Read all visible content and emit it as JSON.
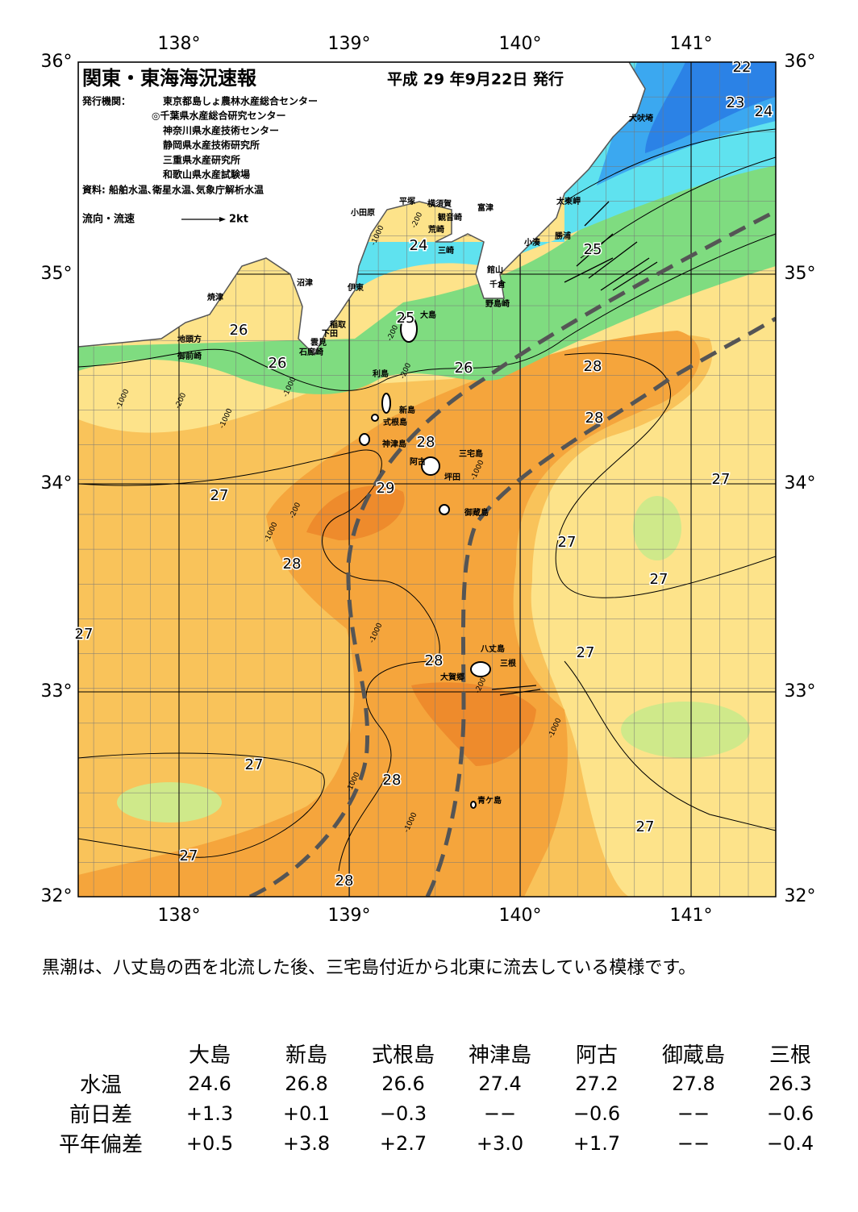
{
  "header": {
    "title": "関東・東海海況速報",
    "date": "平成 29 年9月22日 発行",
    "issuer_label": "発行機関：",
    "issuers": [
      "東京都島しょ農林水産総合センター",
      "◎千葉県水産総合研究センター",
      "神奈川県水産技術センター",
      "静岡県水産技術研究所",
      "三重県水産研究所",
      "和歌山県水産試験場"
    ],
    "source": "資料: 船舶水温､衛星水温､気象庁解析水温"
  },
  "legend": {
    "label": "流向・流速",
    "scale": "2kt"
  },
  "map": {
    "lon_labels": [
      "138°",
      "139°",
      "140°",
      "141°"
    ],
    "lat_labels": [
      "36°",
      "35°",
      "34°",
      "33°",
      "32°"
    ],
    "places": [
      "犬吠埼",
      "太東岬",
      "勝浦",
      "小湊",
      "富津",
      "横須賀",
      "平塚",
      "小田原",
      "観音崎",
      "荒崎",
      "三崎",
      "館山",
      "千倉",
      "野島崎",
      "沼津",
      "伊東",
      "焼津",
      "稲取",
      "下田",
      "雲見",
      "石廊崎",
      "地頭方",
      "御前崎",
      "大島",
      "利島",
      "新島",
      "式根島",
      "神津島",
      "三宅島",
      "阿古",
      "坪田",
      "御蔵島",
      "八丈島",
      "三根",
      "大賀郷",
      "青ケ島"
    ],
    "isotherm_labels": [
      "22",
      "23",
      "24",
      "24",
      "25",
      "25",
      "26",
      "26",
      "26",
      "28",
      "28",
      "28",
      "29",
      "27",
      "27",
      "28",
      "27",
      "27",
      "27",
      "27",
      "28",
      "27",
      "28",
      "27",
      "27",
      "28"
    ],
    "depth_labels": [
      "-1000",
      "-200",
      "-200",
      "-200",
      "-1000",
      "-1000",
      "-200",
      "-1000",
      "-1000",
      "-200",
      "-1000",
      "-1000",
      "-200",
      "-1000",
      "-1000",
      "-1000"
    ]
  },
  "description": "黒潮は、八丈島の西を北流した後、三宅島付近から北東に流去している模様です。",
  "table": {
    "columns": [
      "大島",
      "新島",
      "式根島",
      "神津島",
      "阿古",
      "御蔵島",
      "三根"
    ],
    "rows": [
      {
        "label": "水温",
        "values": [
          "24.6",
          "26.8",
          "26.6",
          "27.4",
          "27.2",
          "27.8",
          "26.3"
        ]
      },
      {
        "label": "前日差",
        "values": [
          "+1.3",
          "+0.1",
          "−0.3",
          "−−",
          "−0.6",
          "−−",
          "−0.6"
        ]
      },
      {
        "label": "平年偏差",
        "values": [
          "+0.5",
          "+3.8",
          "+2.7",
          "+3.0",
          "+1.7",
          "−−",
          "−0.4"
        ]
      }
    ]
  }
}
